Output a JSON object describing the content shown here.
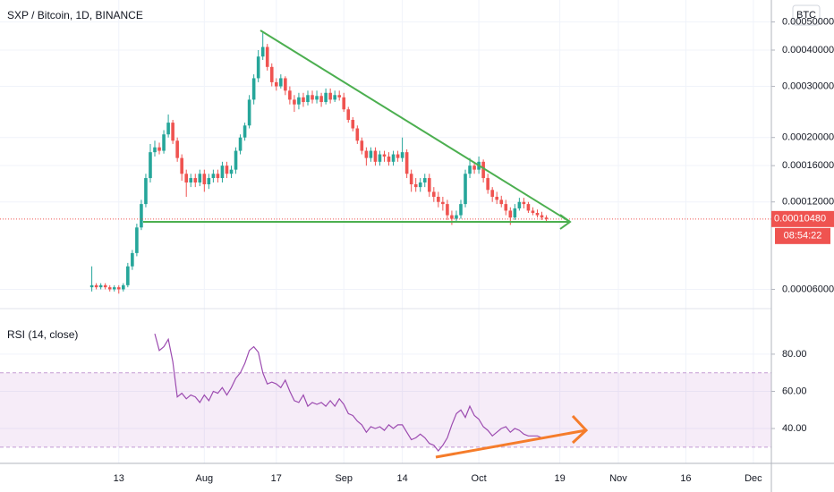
{
  "chart_data": [
    {
      "type": "candlestick",
      "title": "SXP / Bitcoin, 1D, BINANCE",
      "currency": "BTC",
      "log_scale": true,
      "grid": true,
      "up_color": "#26a69a",
      "down_color": "#ef5350",
      "x": [
        -6,
        -5,
        -4,
        -3,
        -2,
        -1,
        0,
        1,
        2,
        3,
        4,
        5,
        6,
        7,
        8,
        9,
        10,
        11,
        12,
        13,
        14,
        15,
        16,
        17,
        18,
        19,
        20,
        21,
        22,
        23,
        24,
        25,
        26,
        27,
        28,
        29,
        30,
        31,
        32,
        33,
        34,
        35,
        36,
        37,
        38,
        39,
        40,
        41,
        42,
        43,
        44,
        45,
        46,
        47,
        48,
        49,
        50,
        51,
        52,
        53,
        54,
        55,
        56,
        57,
        58,
        59,
        60,
        61,
        62,
        63,
        64,
        65,
        66,
        67,
        68,
        69,
        70,
        71,
        72,
        73,
        74,
        75,
        76,
        77,
        78,
        79,
        80,
        81,
        82,
        83,
        84,
        85,
        86,
        87,
        88,
        89,
        90,
        91,
        92,
        93,
        94,
        95
      ],
      "open": [
        6.1e-05,
        6.2e-05,
        6.1e-05,
        6.2e-05,
        6.1e-05,
        6e-05,
        6.1e-05,
        6e-05,
        6.2e-05,
        7.2e-05,
        8e-05,
        9.8e-05,
        0.000118,
        0.000145,
        0.000178,
        0.000185,
        0.00018,
        0.000205,
        0.000225,
        0.000195,
        0.00017,
        0.00015,
        0.00014,
        0.000145,
        0.00014,
        0.00015,
        0.000138,
        0.000145,
        0.00015,
        0.000145,
        0.00016,
        0.00015,
        0.000155,
        0.00018,
        0.0002,
        0.00022,
        0.00027,
        0.00032,
        0.00038,
        0.00041,
        0.00035,
        0.00031,
        0.0003,
        0.00032,
        0.00029,
        0.00027,
        0.00026,
        0.000275,
        0.000265,
        0.00028,
        0.00027,
        0.000278,
        0.000265,
        0.000285,
        0.00027,
        0.00028,
        0.000275,
        0.00025,
        0.00023,
        0.000215,
        0.000195,
        0.00018,
        0.00017,
        0.00018,
        0.000165,
        0.000175,
        0.000172,
        0.000165,
        0.000175,
        0.00017,
        0.000178,
        0.00015,
        0.000138,
        0.000135,
        0.00014,
        0.000145,
        0.00013,
        0.000125,
        0.00012,
        0.000118,
        0.000108,
        0.000105,
        0.000108,
        0.000118,
        0.00015,
        0.00016,
        0.000155,
        0.000165,
        0.000145,
        0.000132,
        0.000125,
        0.000122,
        0.000118,
        0.000112,
        0.000106,
        0.000114,
        0.00012,
        0.000118,
        0.000112,
        0.00011,
        0.000108,
        0.000106
      ],
      "high": [
        7.2e-05,
        6.3e-05,
        6.3e-05,
        6.3e-05,
        6.2e-05,
        6.2e-05,
        6.2e-05,
        6.3e-05,
        7.4e-05,
        8.2e-05,
        0.000101,
        0.000122,
        0.00015,
        0.00019,
        0.000195,
        0.000192,
        0.000212,
        0.00024,
        0.00023,
        0.0002,
        0.000175,
        0.000155,
        0.00015,
        0.00015,
        0.000155,
        0.000155,
        0.00015,
        0.000155,
        0.000155,
        0.000165,
        0.000165,
        0.00016,
        0.000185,
        0.000205,
        0.000225,
        0.00028,
        0.00033,
        0.0004,
        0.00046,
        0.00042,
        0.00036,
        0.00032,
        0.00033,
        0.000325,
        0.0003,
        0.00028,
        0.000285,
        0.000285,
        0.00029,
        0.00029,
        0.00029,
        0.000285,
        0.000295,
        0.000295,
        0.00029,
        0.00029,
        0.000285,
        0.000255,
        0.000235,
        0.00022,
        0.0002,
        0.000185,
        0.000185,
        0.000185,
        0.00018,
        0.00018,
        0.000178,
        0.00018,
        0.00018,
        0.0002,
        0.000182,
        0.000155,
        0.000145,
        0.000145,
        0.00015,
        0.00015,
        0.000135,
        0.00013,
        0.000125,
        0.000122,
        0.000112,
        0.000112,
        0.000122,
        0.000155,
        0.00017,
        0.000165,
        0.000172,
        0.000168,
        0.00015,
        0.000135,
        0.00013,
        0.000126,
        0.000122,
        0.000115,
        0.000118,
        0.000124,
        0.000124,
        0.00012,
        0.000115,
        0.000113,
        0.000111,
        0.000108
      ],
      "low": [
        5.9e-05,
        6e-05,
        6e-05,
        6e-05,
        5.9e-05,
        5.9e-05,
        5.8e-05,
        5.9e-05,
        6.1e-05,
        7e-05,
        7.8e-05,
        9.6e-05,
        0.000115,
        0.00014,
        0.000172,
        0.000175,
        0.000176,
        0.0002,
        0.00019,
        0.000165,
        0.000142,
        0.000125,
        0.000135,
        0.000135,
        0.000136,
        0.00013,
        0.000133,
        0.00014,
        0.00014,
        0.00014,
        0.000145,
        0.000145,
        0.00015,
        0.000175,
        0.000195,
        0.000215,
        0.00026,
        0.00031,
        0.00037,
        0.00034,
        0.0003,
        0.00029,
        0.000295,
        0.00028,
        0.00026,
        0.000245,
        0.00025,
        0.000255,
        0.000258,
        0.000262,
        0.000262,
        0.000255,
        0.00026,
        0.000262,
        0.000265,
        0.000268,
        0.000245,
        0.000225,
        0.00021,
        0.00019,
        0.000175,
        0.00016,
        0.000165,
        0.00016,
        0.00016,
        0.000165,
        0.00016,
        0.00016,
        0.000165,
        0.000165,
        0.000145,
        0.00013,
        0.00013,
        0.00013,
        0.000135,
        0.000125,
        0.00012,
        0.000115,
        0.000112,
        0.000104,
        0.0001,
        0.000102,
        0.000105,
        0.000115,
        0.000145,
        0.00015,
        0.00015,
        0.00014,
        0.000128,
        0.00012,
        0.000118,
        0.000115,
        0.000108,
        0.0001,
        0.000104,
        0.000112,
        0.000114,
        0.00011,
        0.000108,
        0.000106,
        0.000104,
        0.000103
      ],
      "close": [
        6.2e-05,
        6.1e-05,
        6.2e-05,
        6.1e-05,
        6e-05,
        6.1e-05,
        6e-05,
        6.2e-05,
        7.2e-05,
        8e-05,
        9.8e-05,
        0.000118,
        0.000145,
        0.000178,
        0.000185,
        0.00018,
        0.000205,
        0.000225,
        0.000195,
        0.00017,
        0.00015,
        0.00014,
        0.000145,
        0.00014,
        0.00015,
        0.000138,
        0.000145,
        0.00015,
        0.000145,
        0.00016,
        0.00015,
        0.000155,
        0.00018,
        0.0002,
        0.00022,
        0.00027,
        0.00032,
        0.00038,
        0.00041,
        0.00035,
        0.00031,
        0.0003,
        0.00032,
        0.00029,
        0.00027,
        0.00026,
        0.000275,
        0.000265,
        0.00028,
        0.00027,
        0.000278,
        0.000265,
        0.000285,
        0.00027,
        0.00028,
        0.000275,
        0.00025,
        0.00023,
        0.000215,
        0.000195,
        0.00018,
        0.00017,
        0.00018,
        0.000165,
        0.000175,
        0.000172,
        0.000165,
        0.000175,
        0.00017,
        0.000178,
        0.00015,
        0.000138,
        0.000135,
        0.00014,
        0.000145,
        0.00013,
        0.000125,
        0.00012,
        0.000118,
        0.000108,
        0.000105,
        0.000108,
        0.000118,
        0.00015,
        0.00016,
        0.000155,
        0.000165,
        0.000145,
        0.000132,
        0.000125,
        0.000122,
        0.000118,
        0.000112,
        0.000106,
        0.000114,
        0.00012,
        0.000118,
        0.000112,
        0.00011,
        0.000108,
        0.000106,
        0.0001048
      ],
      "xlim": [
        -26.4,
        145
      ],
      "xticks": [
        {
          "value": 0,
          "label": "13"
        },
        {
          "value": 19,
          "label": "Aug"
        },
        {
          "value": 35,
          "label": "17"
        },
        {
          "value": 50,
          "label": "Sep"
        },
        {
          "value": 63,
          "label": "14"
        },
        {
          "value": 80,
          "label": "Oct"
        },
        {
          "value": 98,
          "label": "19"
        },
        {
          "value": 111,
          "label": "Nov"
        },
        {
          "value": 126,
          "label": "16"
        },
        {
          "value": 141,
          "label": "Dec"
        }
      ],
      "ylim": [
        5.15e-05,
        0.000595
      ],
      "yticks": [
        {
          "value": 6e-05,
          "label": "0.00006000"
        },
        {
          "value": 0.00012,
          "label": "0.00012000"
        },
        {
          "value": 0.00016,
          "label": "0.00016000"
        },
        {
          "value": 0.0002,
          "label": "0.00020000"
        },
        {
          "value": 0.0003,
          "label": "0.00030000"
        },
        {
          "value": 0.0004,
          "label": "0.00040000"
        },
        {
          "value": 0.0005,
          "label": "0.00050000"
        }
      ],
      "last_price": {
        "value": 0.0001048,
        "label": "0.00010480"
      },
      "countdown": "08:54:22"
    },
    {
      "type": "line",
      "title": "RSI (14, close)",
      "color": "#9c4bb0",
      "grid": true,
      "x": [
        8,
        9,
        10,
        11,
        12,
        13,
        14,
        15,
        16,
        17,
        18,
        19,
        20,
        21,
        22,
        23,
        24,
        25,
        26,
        27,
        28,
        29,
        30,
        31,
        32,
        33,
        34,
        35,
        36,
        37,
        38,
        39,
        40,
        41,
        42,
        43,
        44,
        45,
        46,
        47,
        48,
        49,
        50,
        51,
        52,
        53,
        54,
        55,
        56,
        57,
        58,
        59,
        60,
        61,
        62,
        63,
        64,
        65,
        66,
        67,
        68,
        69,
        70,
        71,
        72,
        73,
        74,
        75,
        76,
        77,
        78,
        79,
        80,
        81,
        82,
        83,
        84,
        85,
        86,
        87,
        88,
        89,
        90,
        91,
        92,
        93,
        94,
        95
      ],
      "values": [
        91,
        82,
        84,
        88,
        76,
        57,
        59,
        56,
        58,
        57,
        54,
        58,
        55,
        60,
        59,
        62,
        58,
        62,
        67,
        70,
        75,
        82,
        84,
        81,
        70,
        64,
        65,
        64,
        62,
        66,
        60,
        55,
        54,
        58,
        52,
        54,
        53,
        54,
        52,
        55,
        52,
        56,
        53,
        48,
        47,
        44,
        42,
        38,
        41,
        40,
        41,
        39,
        42,
        40,
        42,
        42,
        38,
        34,
        35,
        37,
        35,
        32,
        31,
        28,
        31,
        35,
        42,
        48,
        50,
        46,
        52,
        47,
        45,
        41,
        39,
        36,
        38,
        40,
        41,
        38,
        40,
        39,
        37,
        36,
        36,
        36,
        35,
        35
      ],
      "ylim": [
        21.25,
        104.5
      ],
      "yticks": [
        {
          "value": 40,
          "label": "40.00"
        },
        {
          "value": 60,
          "label": "60.00"
        },
        {
          "value": 80,
          "label": "80.00"
        }
      ],
      "band": [
        30,
        70
      ]
    }
  ]
}
